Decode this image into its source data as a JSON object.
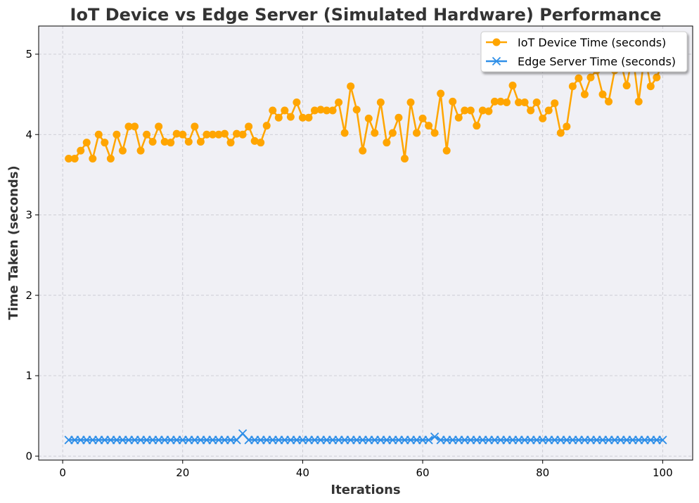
{
  "chart_data": {
    "type": "line",
    "title": "IoT Device vs Edge Server (Simulated Hardware) Performance",
    "xlabel": "Iterations",
    "ylabel": "Time Taken (seconds)",
    "xlim": [
      -4,
      105
    ],
    "ylim": [
      -0.05,
      5.35
    ],
    "xticks": [
      0,
      20,
      40,
      60,
      80,
      100
    ],
    "yticks": [
      0,
      1,
      2,
      3,
      4,
      5
    ],
    "grid": true,
    "legend_position": "top-right",
    "background": "#f0f0f5",
    "x": [
      1,
      2,
      3,
      4,
      5,
      6,
      7,
      8,
      9,
      10,
      11,
      12,
      13,
      14,
      15,
      16,
      17,
      18,
      19,
      20,
      21,
      22,
      23,
      24,
      25,
      26,
      27,
      28,
      29,
      30,
      31,
      32,
      33,
      34,
      35,
      36,
      37,
      38,
      39,
      40,
      41,
      42,
      43,
      44,
      45,
      46,
      47,
      48,
      49,
      50,
      51,
      52,
      53,
      54,
      55,
      56,
      57,
      58,
      59,
      60,
      61,
      62,
      63,
      64,
      65,
      66,
      67,
      68,
      69,
      70,
      71,
      72,
      73,
      74,
      75,
      76,
      77,
      78,
      79,
      80,
      81,
      82,
      83,
      84,
      85,
      86,
      87,
      88,
      89,
      90,
      91,
      92,
      93,
      94,
      95,
      96,
      97,
      98,
      99,
      100
    ],
    "series": [
      {
        "name": "IoT Device Time (seconds)",
        "color": "#ffa500",
        "marker": "circle",
        "values": [
          3.7,
          3.7,
          3.8,
          3.9,
          3.7,
          4.0,
          3.9,
          3.7,
          4.0,
          3.8,
          4.1,
          4.1,
          3.8,
          4.0,
          3.91,
          4.1,
          3.91,
          3.9,
          4.01,
          4.0,
          3.91,
          4.1,
          3.91,
          4.0,
          4.0,
          4.0,
          4.01,
          3.9,
          4.01,
          4.0,
          4.1,
          3.92,
          3.9,
          4.11,
          4.3,
          4.21,
          4.3,
          4.22,
          4.4,
          4.21,
          4.21,
          4.3,
          4.31,
          4.3,
          4.3,
          4.4,
          4.02,
          4.6,
          4.31,
          3.8,
          4.2,
          4.02,
          4.4,
          3.9,
          4.02,
          4.21,
          3.7,
          4.4,
          4.02,
          4.2,
          4.11,
          4.02,
          4.51,
          3.8,
          4.41,
          4.21,
          4.3,
          4.3,
          4.11,
          4.3,
          4.29,
          4.41,
          4.41,
          4.4,
          4.61,
          4.4,
          4.4,
          4.3,
          4.4,
          4.2,
          4.3,
          4.39,
          4.02,
          4.1,
          4.6,
          4.7,
          4.5,
          4.71,
          4.8,
          4.5,
          4.41,
          4.8,
          4.9,
          4.61,
          5.0,
          4.41,
          5.0,
          4.6,
          4.71,
          4.9
        ]
      },
      {
        "name": "Edge Server Time (seconds)",
        "color": "#2f8fe8",
        "marker": "x",
        "values": [
          0.2,
          0.2,
          0.2,
          0.2,
          0.2,
          0.2,
          0.2,
          0.2,
          0.2,
          0.2,
          0.2,
          0.2,
          0.2,
          0.2,
          0.2,
          0.2,
          0.2,
          0.2,
          0.2,
          0.2,
          0.2,
          0.2,
          0.2,
          0.2,
          0.2,
          0.2,
          0.2,
          0.2,
          0.2,
          0.28,
          0.2,
          0.2,
          0.2,
          0.2,
          0.2,
          0.2,
          0.2,
          0.2,
          0.2,
          0.2,
          0.2,
          0.2,
          0.2,
          0.2,
          0.2,
          0.2,
          0.2,
          0.2,
          0.2,
          0.2,
          0.2,
          0.2,
          0.2,
          0.2,
          0.2,
          0.2,
          0.2,
          0.2,
          0.2,
          0.2,
          0.2,
          0.24,
          0.2,
          0.2,
          0.2,
          0.2,
          0.2,
          0.2,
          0.2,
          0.2,
          0.2,
          0.2,
          0.2,
          0.2,
          0.2,
          0.2,
          0.2,
          0.2,
          0.2,
          0.2,
          0.2,
          0.2,
          0.2,
          0.2,
          0.2,
          0.2,
          0.2,
          0.2,
          0.2,
          0.2,
          0.2,
          0.2,
          0.2,
          0.2,
          0.2,
          0.2,
          0.2,
          0.2,
          0.2,
          0.2
        ]
      }
    ]
  }
}
